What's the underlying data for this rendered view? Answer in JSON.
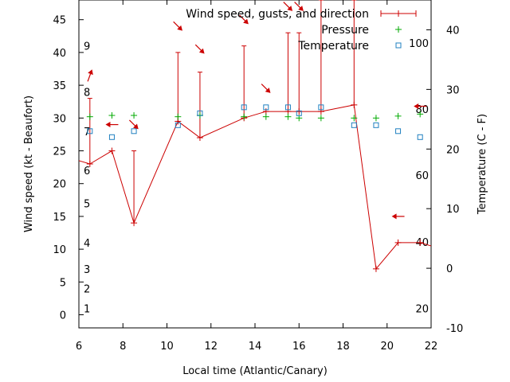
{
  "chart_data": {
    "type": "line",
    "xlabel": "Local time (Atlantic/Canary)",
    "ylabel": "Wind speed (kt - Beaufort)",
    "y2label": "Temperature (C - F)",
    "xlim": [
      6,
      22
    ],
    "ylim": [
      -2,
      48
    ],
    "y2lim": [
      -10,
      45
    ],
    "x_ticks": [
      "6",
      "8",
      "10",
      "12",
      "14",
      "16",
      "18",
      "20",
      "22"
    ],
    "x_tick_values": [
      6,
      8,
      10,
      12,
      14,
      16,
      18,
      20,
      22
    ],
    "y_ticks": [
      "0",
      "5",
      "10",
      "15",
      "20",
      "25",
      "30",
      "35",
      "40",
      "45"
    ],
    "y_tick_values": [
      0,
      5,
      10,
      15,
      20,
      25,
      30,
      35,
      40,
      45
    ],
    "y2_ticks": [
      "-10",
      "0",
      "10",
      "20",
      "30",
      "40"
    ],
    "y2_tick_values": [
      -10,
      0,
      10,
      20,
      30,
      40
    ],
    "beaufort_labels": [
      {
        "label": "1",
        "kt": 1
      },
      {
        "label": "2",
        "kt": 4
      },
      {
        "label": "3",
        "kt": 7
      },
      {
        "label": "4",
        "kt": 11
      },
      {
        "label": "5",
        "kt": 17
      },
      {
        "label": "6",
        "kt": 22
      },
      {
        "label": "7",
        "kt": 28
      },
      {
        "label": "8",
        "kt": 34
      },
      {
        "label": "9",
        "kt": 41
      }
    ],
    "fahrenheit_labels": [
      {
        "label": "20",
        "c": -6.7
      },
      {
        "label": "40",
        "c": 4.4
      },
      {
        "label": "60",
        "c": 15.6
      },
      {
        "label": "80",
        "c": 26.7
      },
      {
        "label": "100",
        "c": 37.8
      }
    ],
    "legend": {
      "placement": "top-right",
      "entries": [
        "Wind speed, gusts, and direction",
        "Pressure",
        "Temperature"
      ]
    },
    "series": [
      {
        "name": "Wind speed, gusts, and direction",
        "type": "line-errorbar",
        "color": "#cc0000",
        "x": [
          5.5,
          6.5,
          7.5,
          8.5,
          10.5,
          11.5,
          13.5,
          14.5,
          15.5,
          16.0,
          17.0,
          18.5,
          19.5,
          20.5,
          21.5,
          22.5
        ],
        "y": [
          24,
          23,
          25,
          14,
          29.5,
          27,
          30,
          31,
          31,
          31,
          31,
          32,
          7,
          11,
          11,
          10
        ],
        "gusts": [
          24,
          33,
          25,
          25,
          40,
          37,
          41,
          31,
          43,
          43,
          48,
          48,
          7,
          11,
          11,
          10
        ]
      },
      {
        "name": "Pressure",
        "type": "scatter",
        "marker": "plus",
        "color": "#00aa00",
        "x": [
          6.5,
          7.5,
          8.5,
          10.5,
          11.5,
          13.5,
          14.5,
          15.5,
          16.0,
          17.0,
          18.5,
          19.5,
          20.5,
          21.5
        ],
        "y": [
          30.2,
          30.4,
          30.4,
          30.2,
          30.4,
          30.2,
          30.2,
          30.2,
          30.0,
          30.0,
          30.0,
          30.0,
          30.3,
          30.6
        ]
      },
      {
        "name": "Temperature",
        "type": "scatter",
        "marker": "square",
        "color": "#2080c0",
        "axis": "y2",
        "x": [
          6.5,
          7.5,
          8.5,
          10.5,
          11.5,
          13.5,
          14.5,
          15.5,
          16.0,
          17.0,
          18.5,
          19.5,
          20.5,
          21.5
        ],
        "y": [
          23,
          22,
          23,
          24,
          26,
          27,
          27,
          27,
          26,
          27,
          24,
          24,
          23,
          22
        ]
      }
    ],
    "wind_direction_arrows": {
      "color": "#cc0000",
      "x": [
        6.5,
        7.5,
        8.5,
        10.5,
        11.5,
        13.5,
        14.5,
        15.5,
        16.0,
        20.5,
        21.5,
        22.5
      ],
      "y": [
        36.5,
        29,
        29,
        44,
        40.5,
        45,
        34.5,
        47,
        47,
        15,
        31.8,
        26.5
      ],
      "dir": [
        200,
        90,
        315,
        315,
        315,
        315,
        315,
        315,
        315,
        90,
        90,
        90
      ]
    }
  }
}
